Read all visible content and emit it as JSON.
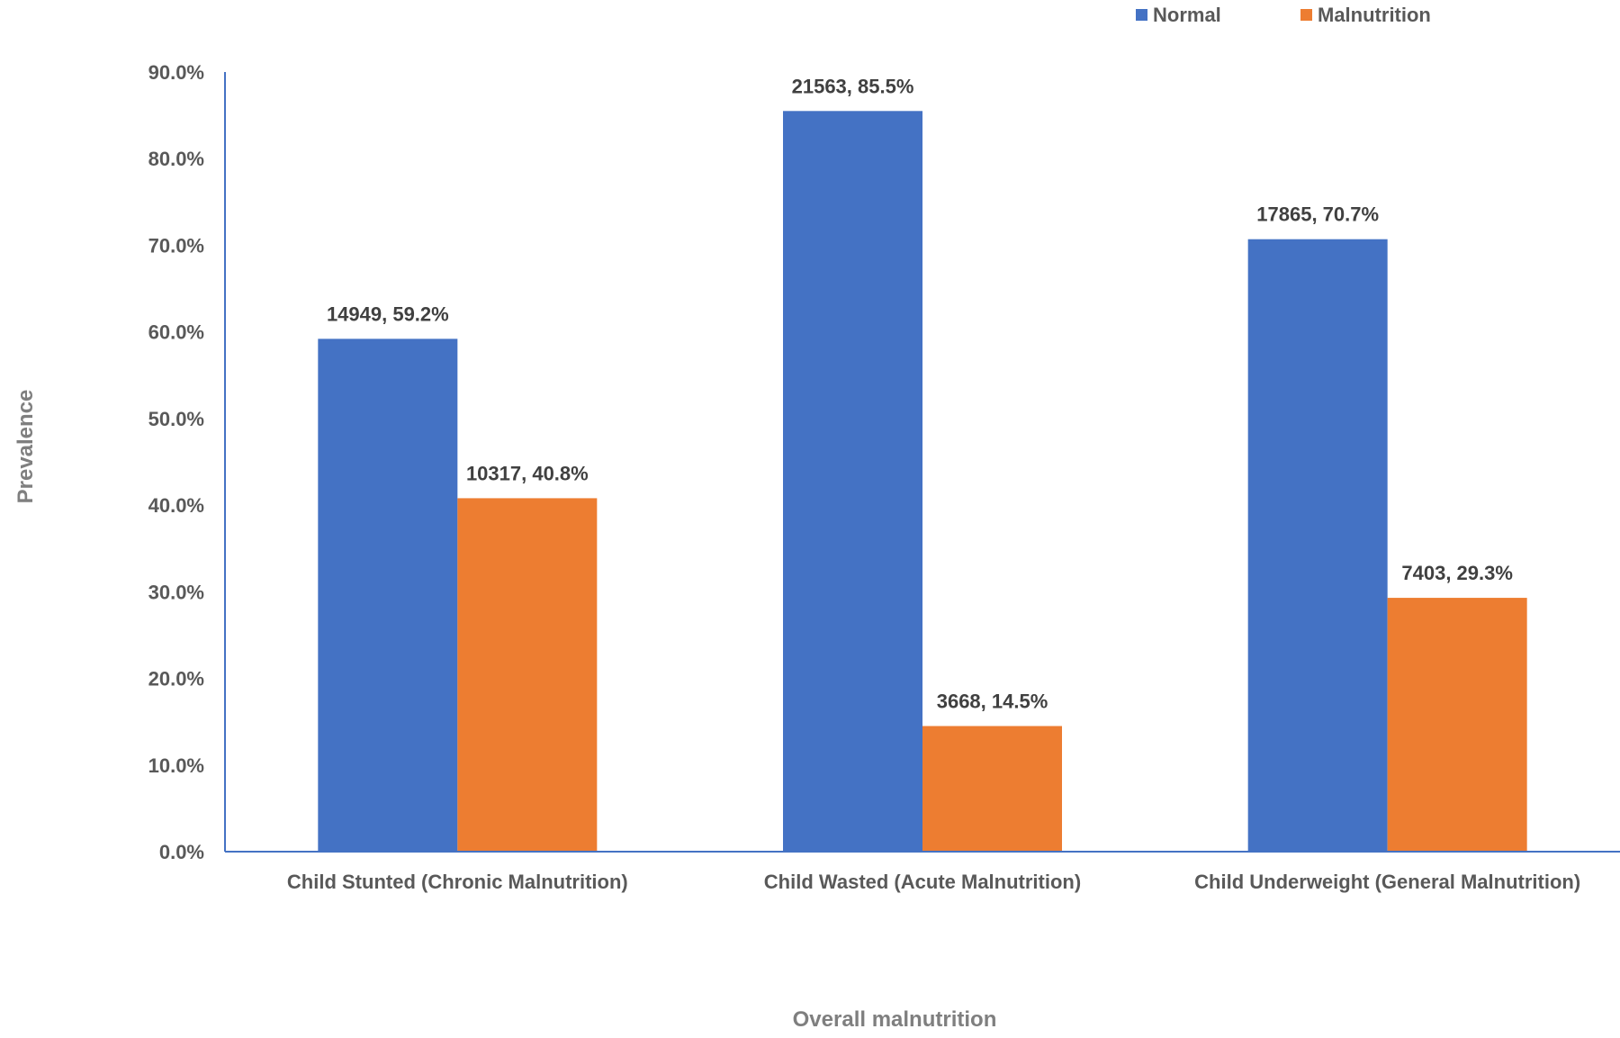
{
  "chart_data": {
    "type": "bar",
    "title": "",
    "xlabel": "Overall malnutrition",
    "ylabel": "Prevalence",
    "ylim": [
      0,
      90
    ],
    "yticks": [
      "0.0%",
      "10.0%",
      "20.0%",
      "30.0%",
      "40.0%",
      "50.0%",
      "60.0%",
      "70.0%",
      "80.0%",
      "90.0%"
    ],
    "legend_position": "top-right",
    "grid": false,
    "categories": [
      "Child Stunted (Chronic Malnutrition)",
      "Child Wasted (Acute Malnutrition)",
      "Child Underweight (General Malnutrition)"
    ],
    "series": [
      {
        "name": "Normal",
        "color": "#4472C4",
        "values": [
          59.2,
          85.5,
          70.7
        ],
        "counts": [
          14949,
          21563,
          17865
        ],
        "labels": [
          "14949, 59.2%",
          "21563, 85.5%",
          "17865, 70.7%"
        ]
      },
      {
        "name": "Malnutrition",
        "color": "#ED7D31",
        "values": [
          40.8,
          14.5,
          29.3
        ],
        "counts": [
          10317,
          3668,
          7403
        ],
        "labels": [
          "10317, 40.8%",
          "3668, 14.5%",
          "7403, 29.3%"
        ]
      }
    ]
  }
}
